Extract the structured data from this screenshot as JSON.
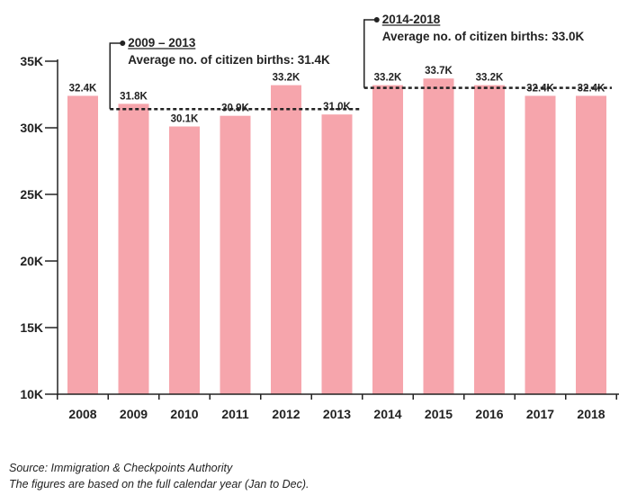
{
  "chart_data": {
    "type": "bar",
    "categories": [
      "2008",
      "2009",
      "2010",
      "2011",
      "2012",
      "2013",
      "2014",
      "2015",
      "2016",
      "2017",
      "2018"
    ],
    "values": [
      32.4,
      31.8,
      30.1,
      30.9,
      33.2,
      31.0,
      33.2,
      33.7,
      33.2,
      32.4,
      32.4
    ],
    "data_labels": [
      "32.4K",
      "31.8K",
      "30.1K",
      "30.9K",
      "33.2K",
      "31.0K",
      "33.2K",
      "33.7K",
      "33.2K",
      "32.4K",
      "32.4K"
    ],
    "unit": "K",
    "ylim": [
      10,
      35
    ],
    "yticks": [
      10,
      15,
      20,
      25,
      30,
      35
    ],
    "ytick_labels": [
      "10K",
      "15K",
      "20K",
      "25K",
      "30K",
      "35K"
    ],
    "title": "",
    "xlabel": "",
    "ylabel": "",
    "bar_color": "#f6a5ac",
    "grid": false,
    "annotations": [
      {
        "period": "2009 – 2013",
        "text": "Average no. of citizen births: 31.4K",
        "value": 31.4,
        "from": "2009",
        "to": "2013"
      },
      {
        "period": "2014-2018",
        "text": "Average no. of citizen births: 33.0K",
        "value": 33.0,
        "from": "2014",
        "to": "2018"
      }
    ]
  },
  "footer": {
    "source": "Source: Immigration & Checkpoints Authority",
    "note": "The figures are based on the full calendar year (Jan to Dec)."
  }
}
